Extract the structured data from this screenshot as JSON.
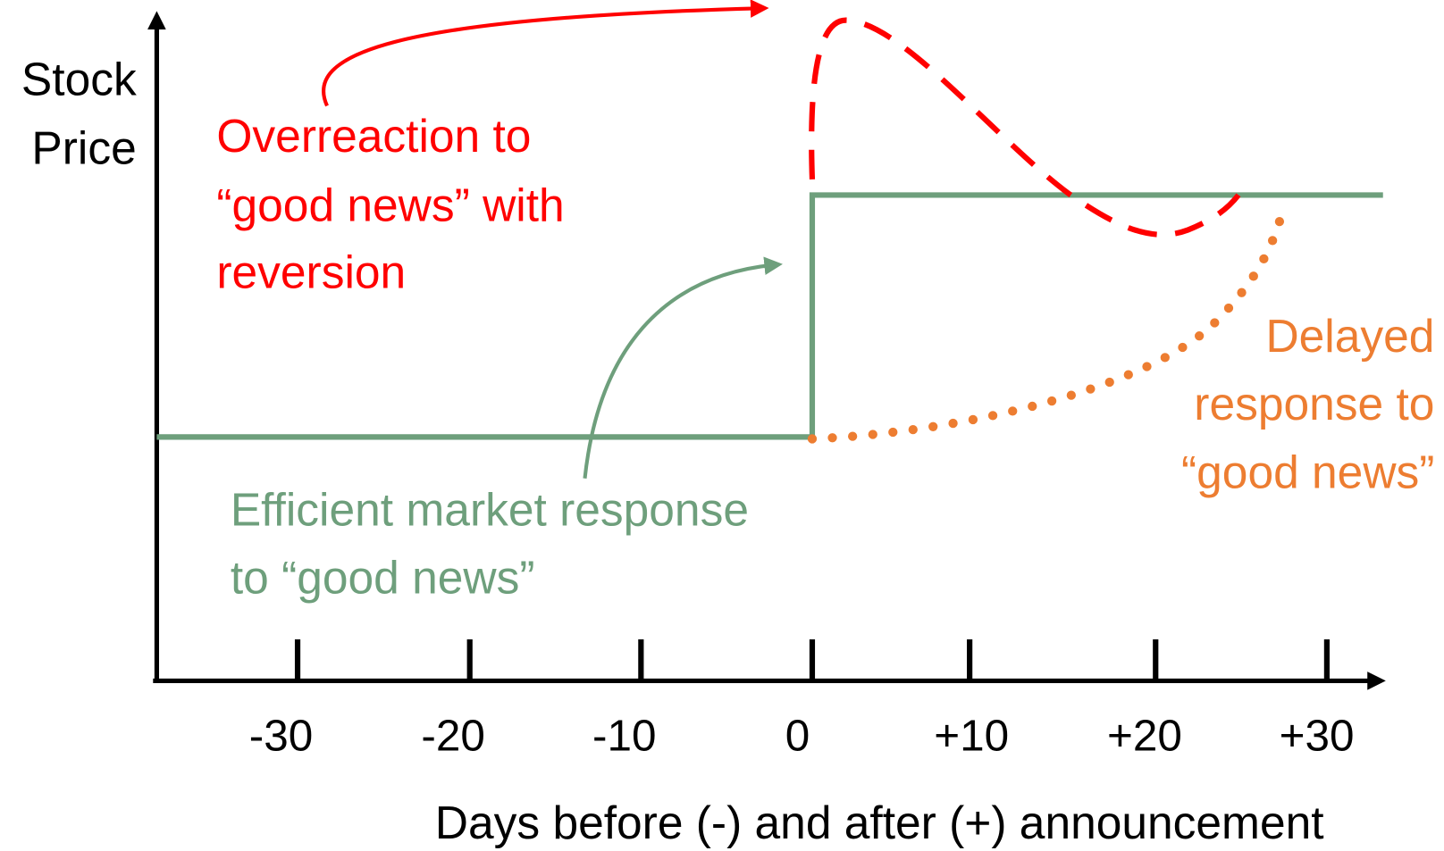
{
  "y_label": [
    "Stock",
    "Price"
  ],
  "x_label": "Days before (-) and after (+) announcement",
  "x_ticks": [
    "-30",
    "-20",
    "-10",
    "0",
    "+10",
    "+20",
    "+30"
  ],
  "annotations": {
    "overreaction": [
      "Overreaction to",
      "“good news” with",
      "reversion"
    ],
    "delayed": [
      "Delayed",
      "response to",
      "“good news”"
    ],
    "efficient": [
      "Efficient market response",
      "to “good news”"
    ]
  }
}
